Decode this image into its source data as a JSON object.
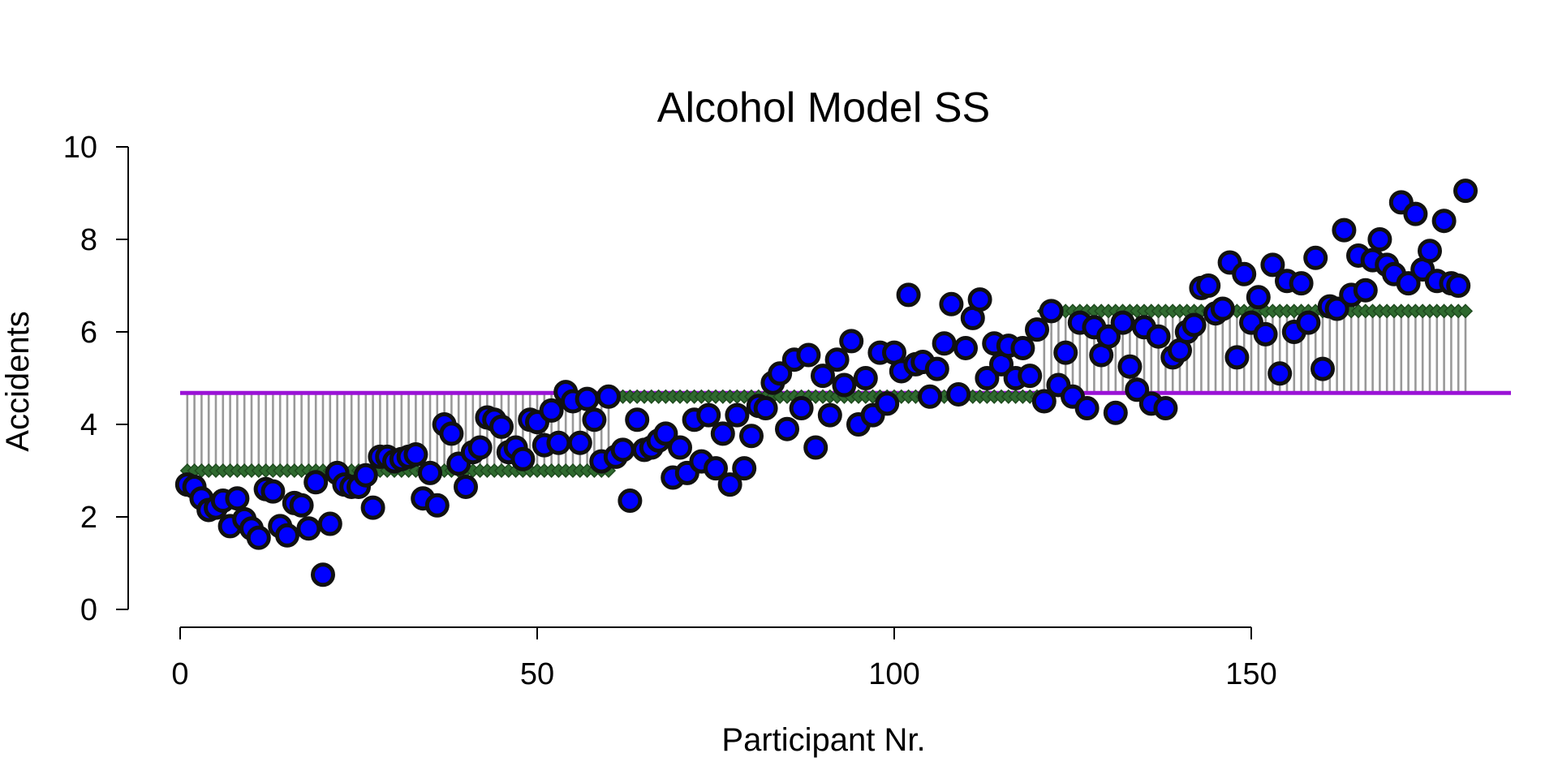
{
  "chart_data": {
    "type": "scatter",
    "title": "Alcohol Model SS",
    "xlabel": "Participant Nr.",
    "ylabel": "Accidents",
    "xlim": [
      0,
      180
    ],
    "ylim": [
      0,
      10
    ],
    "x_ticks": [
      0,
      50,
      100,
      150
    ],
    "y_ticks": [
      0,
      2,
      4,
      6,
      8,
      10
    ],
    "grid": false,
    "grand_mean": 4.68,
    "group_means": [
      {
        "from": 1,
        "to": 60,
        "value": 3.0
      },
      {
        "from": 61,
        "to": 120,
        "value": 4.6
      },
      {
        "from": 121,
        "to": 180,
        "value": 6.45
      }
    ],
    "observed_values": [
      2.7,
      2.65,
      2.4,
      2.15,
      2.2,
      2.35,
      1.8,
      2.4,
      1.95,
      1.75,
      1.55,
      2.6,
      2.55,
      1.8,
      1.6,
      2.3,
      2.25,
      1.75,
      2.75,
      0.75,
      1.85,
      2.95,
      2.7,
      2.65,
      2.65,
      2.9,
      2.2,
      3.3,
      3.3,
      3.2,
      3.25,
      3.3,
      3.35,
      2.4,
      2.95,
      2.25,
      4.0,
      3.8,
      3.15,
      2.65,
      3.4,
      3.5,
      4.15,
      4.1,
      3.95,
      3.4,
      3.5,
      3.25,
      4.1,
      4.05,
      3.55,
      4.3,
      3.6,
      4.7,
      4.5,
      3.6,
      4.55,
      4.1,
      3.2,
      4.6,
      3.3,
      3.45,
      2.35,
      4.1,
      3.45,
      3.5,
      3.65,
      3.8,
      2.85,
      3.5,
      2.95,
      4.1,
      3.2,
      4.2,
      3.05,
      3.8,
      2.7,
      4.2,
      3.05,
      3.75,
      4.4,
      4.35,
      4.9,
      5.1,
      3.9,
      5.4,
      4.35,
      5.5,
      3.5,
      5.05,
      4.2,
      5.4,
      4.85,
      5.8,
      4.0,
      5.0,
      4.2,
      5.55,
      4.45,
      5.55,
      5.15,
      6.8,
      5.3,
      5.35,
      4.6,
      5.2,
      5.75,
      6.6,
      4.65,
      5.65,
      6.3,
      6.7,
      5.0,
      5.75,
      5.3,
      5.7,
      5.0,
      5.65,
      5.05,
      6.05,
      4.5,
      6.45,
      4.85,
      5.55,
      4.6,
      6.2,
      4.35,
      6.1,
      5.5,
      5.9,
      4.25,
      6.2,
      5.25,
      4.75,
      6.1,
      4.45,
      5.9,
      4.35,
      5.45,
      5.6,
      6.0,
      6.15,
      6.95,
      7.0,
      6.4,
      6.5,
      7.5,
      5.45,
      7.25,
      6.2,
      6.75,
      5.95,
      7.45,
      5.1,
      7.1,
      6.0,
      7.05,
      6.2,
      7.6,
      5.2,
      6.55,
      6.5,
      8.2,
      6.8,
      7.65,
      6.9,
      7.55,
      8.0,
      7.45,
      7.25,
      8.8,
      7.05,
      8.55,
      7.35,
      7.75,
      7.1,
      8.4,
      7.05,
      7.0,
      9.05
    ],
    "colors": {
      "points_fill": "#0000ff",
      "points_stroke": "#111111",
      "model_diamonds": "#2f6a2f",
      "residual_lines": "#999999",
      "grand_mean_line": "#9a12d6"
    }
  }
}
